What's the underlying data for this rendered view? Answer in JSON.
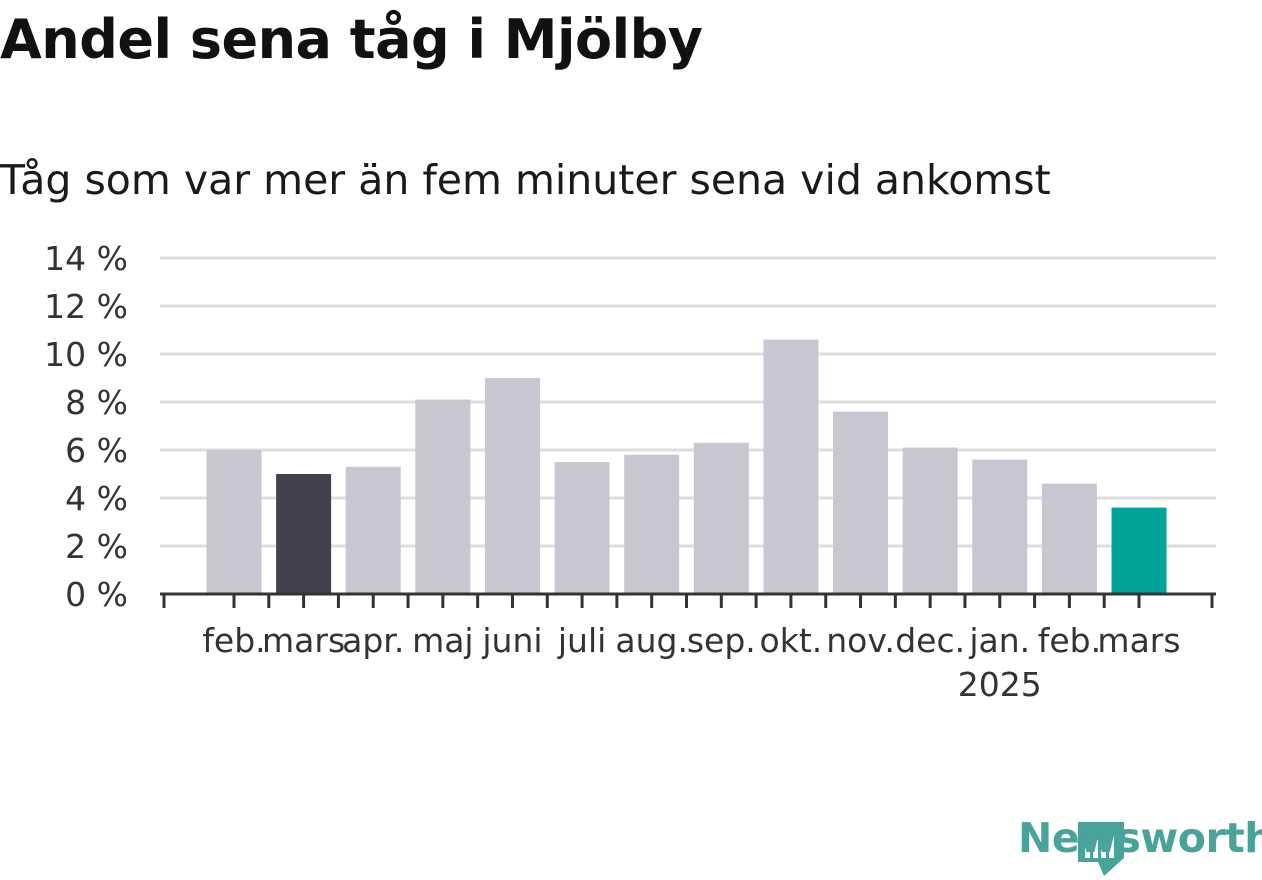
{
  "title": "Andel sena tåg i Mjölby",
  "subtitle": "Tåg som var mer än fem minuter sena vid ankomst",
  "brand": "Newsworthy",
  "colors": {
    "bar": "#c8c7d1",
    "highlight_previous": "#43414e",
    "highlight_current": "#00a398",
    "grid": "#dddddd",
    "axis": "#333333",
    "brand": "#4aa39a"
  },
  "chart_data": {
    "type": "bar",
    "title": "Andel sena tåg i Mjölby",
    "subtitle": "Tåg som var mer än fem minuter sena vid ankomst",
    "categories": [
      "feb.",
      "mars",
      "apr.",
      "maj",
      "juni",
      "juli",
      "aug.",
      "sep.",
      "okt.",
      "nov.",
      "dec.",
      "jan.",
      "feb.",
      "mars"
    ],
    "year_labels": [
      {
        "index": 11,
        "label": "2025"
      }
    ],
    "values": [
      6.0,
      5.0,
      5.3,
      8.1,
      9.0,
      5.5,
      5.8,
      6.3,
      10.6,
      7.6,
      6.1,
      5.6,
      4.6,
      3.6
    ],
    "highlight": {
      "1": "highlight_previous",
      "13": "highlight_current"
    },
    "ylim": [
      0,
      14
    ],
    "yticks": [
      0,
      2,
      4,
      6,
      8,
      10,
      12,
      14
    ],
    "ytick_labels": [
      "0 %",
      "2 %",
      "4 %",
      "6 %",
      "8 %",
      "10 %",
      "12 %",
      "14 %"
    ],
    "xlabel": "",
    "ylabel": "",
    "grid": true,
    "legend": "none"
  }
}
